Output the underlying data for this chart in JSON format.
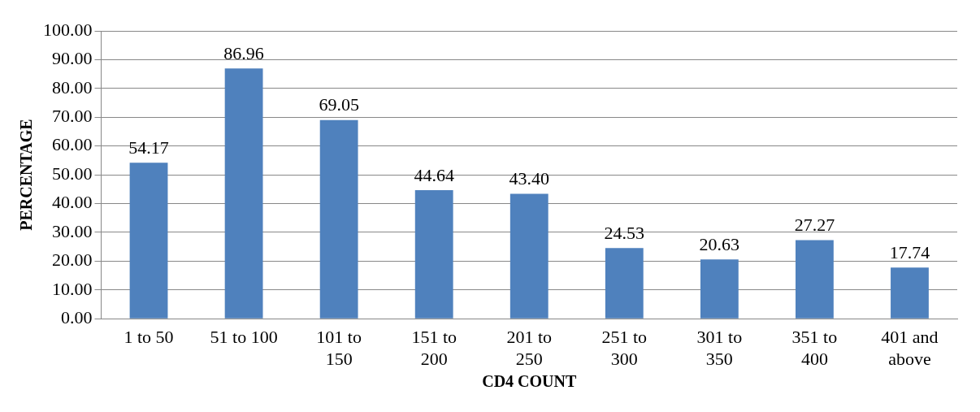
{
  "chart_data": {
    "type": "bar",
    "xlabel": "CD4 COUNT",
    "ylabel": "PERCENTAGE",
    "categories": [
      "1 to 50",
      "51 to 100",
      "101 to 150",
      "151 to 200",
      "201 to 250",
      "251 to 300",
      "301 to 350",
      "351 to 400",
      "401 and above"
    ],
    "values": [
      54.17,
      86.96,
      69.05,
      44.64,
      43.4,
      24.53,
      20.63,
      27.27,
      17.74
    ],
    "value_labels": [
      "54.17",
      "86.96",
      "69.05",
      "44.64",
      "43.40",
      "24.53",
      "20.63",
      "27.27",
      "17.74"
    ],
    "color": "#4f81bd",
    "ylim": [
      0,
      100
    ],
    "yticks": [
      {
        "value": 0,
        "label": "0.00"
      },
      {
        "value": 10,
        "label": "10.00"
      },
      {
        "value": 20,
        "label": "20.00"
      },
      {
        "value": 30,
        "label": "30.00"
      },
      {
        "value": 40,
        "label": "40.00"
      },
      {
        "value": 50,
        "label": "50.00"
      },
      {
        "value": 60,
        "label": "60.00"
      },
      {
        "value": 70,
        "label": "70.00"
      },
      {
        "value": 80,
        "label": "80.00"
      },
      {
        "value": 90,
        "label": "90.00"
      },
      {
        "value": 100,
        "label": "100.00"
      }
    ],
    "grid": "y",
    "legend": false
  }
}
